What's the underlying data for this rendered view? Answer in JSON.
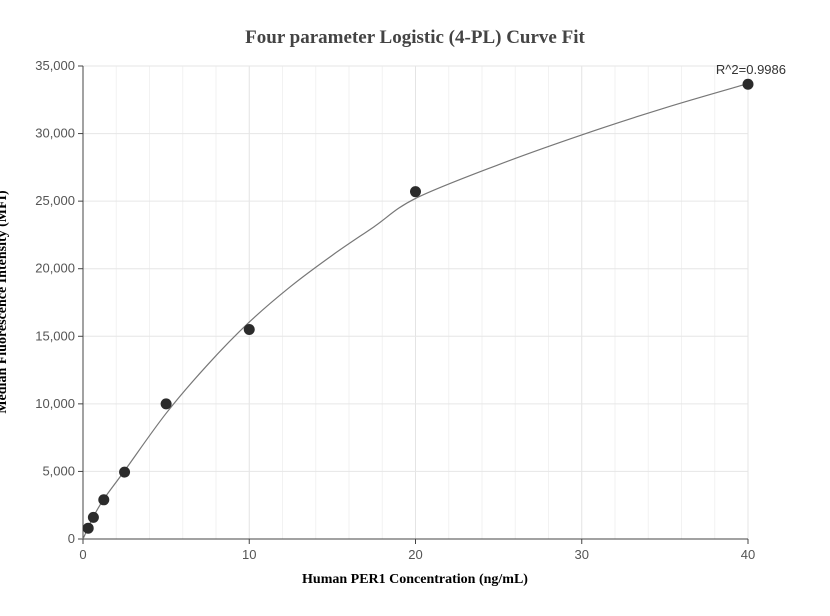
{
  "chart_data": {
    "type": "scatter",
    "title": "Four parameter Logistic (4-PL) Curve Fit",
    "xlabel": "Human PER1 Concentration (ng/mL)",
    "ylabel": "Median Fluorescence Intensity (MFI)",
    "xlim": [
      0,
      40
    ],
    "ylim": [
      0,
      35000
    ],
    "x_ticks": [
      0,
      10,
      20,
      30,
      40
    ],
    "x_tick_labels": [
      "0",
      "10",
      "20",
      "30",
      "40"
    ],
    "y_ticks": [
      0,
      5000,
      10000,
      15000,
      20000,
      25000,
      30000,
      35000
    ],
    "y_tick_labels": [
      "0",
      "5,000",
      "10,000",
      "15,000",
      "20,000",
      "25,000",
      "30,000",
      "35,000"
    ],
    "grid": true,
    "annotation": "R^2=0.9986",
    "points": {
      "x": [
        0.3125,
        0.625,
        1.25,
        2.5,
        5,
        10,
        20,
        40
      ],
      "y": [
        800,
        1600,
        2900,
        4950,
        10000,
        15500,
        25700,
        33650
      ]
    },
    "fit_curve": {
      "x": [
        0,
        0.3125,
        0.625,
        1.25,
        2.5,
        5,
        7.5,
        10,
        12.5,
        15,
        17.5,
        20,
        25,
        30,
        35,
        40
      ],
      "y": [
        0,
        850,
        1650,
        2950,
        5050,
        9300,
        12900,
        16050,
        18700,
        21000,
        23100,
        25200,
        27700,
        29900,
        31900,
        33700
      ]
    },
    "colors": {
      "points": "#2b2b2b",
      "curve": "#777777",
      "grid": "#e6e6e6",
      "axis": "#444444"
    }
  }
}
